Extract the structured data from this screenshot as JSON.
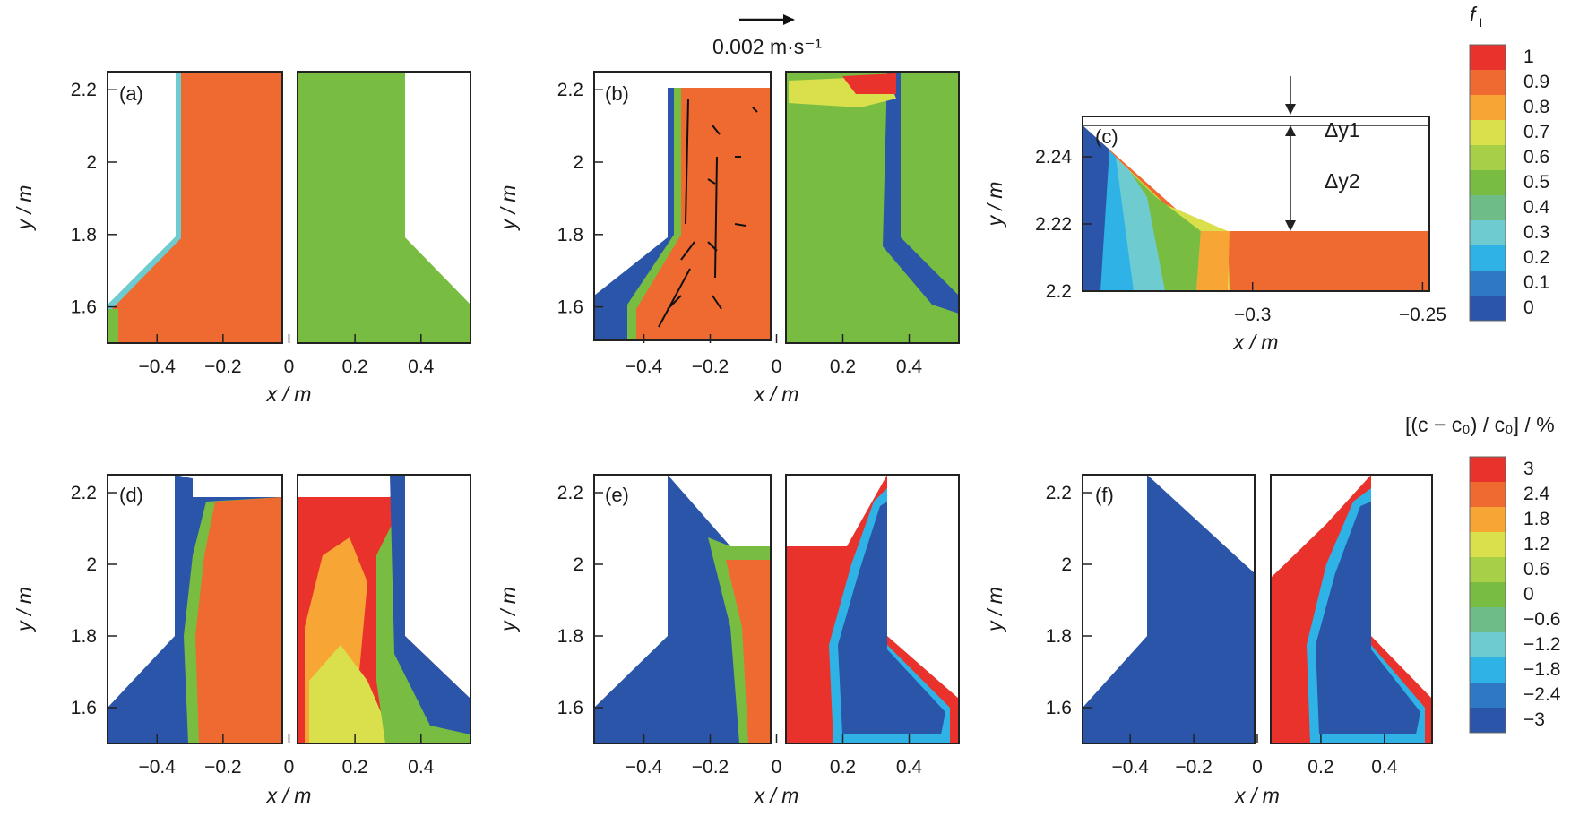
{
  "figure": {
    "velocity_scale_label": "0.002 m·s⁻¹",
    "colors": {
      "red": "#e8322b",
      "orange": "#ef6a30",
      "amber": "#f7a534",
      "yellow": "#d9e04c",
      "lime": "#a7cf48",
      "green": "#78bd42",
      "teal_green": "#6fbd86",
      "cyan_light": "#6ecbd0",
      "cyan": "#2fb3e6",
      "blue_light": "#2f78c5",
      "blue": "#2b55a8"
    }
  },
  "colorbars": [
    {
      "title_main": "f",
      "title_sub": "l",
      "labels": [
        "1",
        "0.9",
        "0.8",
        "0.7",
        "0.6",
        "0.5",
        "0.4",
        "0.3",
        "0.2",
        "0.1",
        "0"
      ],
      "colors": [
        "#e8322b",
        "#ef6a30",
        "#f7a534",
        "#d9e04c",
        "#a7cf48",
        "#78bd42",
        "#6fbd86",
        "#6ecbd0",
        "#2fb3e6",
        "#2f78c5",
        "#2b55a8"
      ]
    },
    {
      "title": "[(c − c₀) / c₀] / %",
      "labels": [
        "3",
        "2.4",
        "1.8",
        "1.2",
        "0.6",
        "0",
        "−0.6",
        "−1.2",
        "−1.8",
        "−2.4",
        "−3"
      ],
      "colors": [
        "#e8322b",
        "#ef6a30",
        "#f7a534",
        "#d9e04c",
        "#a7cf48",
        "#78bd42",
        "#6fbd86",
        "#6ecbd0",
        "#2fb3e6",
        "#2f78c5",
        "#2b55a8"
      ]
    }
  ],
  "chart_data": [
    {
      "type": "heatmap",
      "panel": "(a)",
      "field": "liquid fraction f_l",
      "xlabel": "x / m",
      "ylabel": "y / m",
      "xticks": [
        "−0.4",
        "−0.2",
        "0",
        "0.2",
        "0.4"
      ],
      "yticks": [
        "1.6",
        "1.8",
        "2",
        "2.2"
      ],
      "xlim": [
        -0.55,
        0.55
      ],
      "ylim": [
        1.5,
        2.25
      ]
    },
    {
      "type": "heatmap",
      "panel": "(b)",
      "field": "liquid fraction f_l with velocity vectors",
      "xlabel": "x / m",
      "ylabel": "y / m",
      "xticks": [
        "−0.4",
        "−0.2",
        "0",
        "0.2",
        "0.4"
      ],
      "yticks": [
        "1.6",
        "1.8",
        "2",
        "2.2"
      ],
      "xlim": [
        -0.55,
        0.55
      ],
      "ylim": [
        1.5,
        2.25
      ]
    },
    {
      "type": "heatmap",
      "panel": "(c)",
      "field": "liquid fraction f_l, magnified top region",
      "xlabel": "x / m",
      "ylabel": "y / m",
      "xticks": [
        "−0.3",
        "−0.25"
      ],
      "yticks": [
        "2.2",
        "2.22",
        "2.24"
      ],
      "xlim": [
        -0.35,
        -0.248
      ],
      "ylim": [
        2.2,
        2.252
      ],
      "annotations": [
        "Δy1",
        "Δy2"
      ]
    },
    {
      "type": "heatmap",
      "panel": "(d)",
      "field": "relative segregation (c − c0)/c0 (%)",
      "xlabel": "x / m",
      "ylabel": "y / m",
      "xticks": [
        "−0.4",
        "−0.2",
        "0",
        "0.2",
        "0.4"
      ],
      "yticks": [
        "1.6",
        "1.8",
        "2",
        "2.2"
      ],
      "xlim": [
        -0.55,
        0.55
      ],
      "ylim": [
        1.5,
        2.25
      ]
    },
    {
      "type": "heatmap",
      "panel": "(e)",
      "field": "relative segregation (c − c0)/c0 (%)",
      "xlabel": "x / m",
      "ylabel": "y / m",
      "xticks": [
        "−0.4",
        "−0.2",
        "0",
        "0.2",
        "0.4"
      ],
      "yticks": [
        "1.6",
        "1.8",
        "2",
        "2.2"
      ],
      "xlim": [
        -0.55,
        0.55
      ],
      "ylim": [
        1.5,
        2.25
      ]
    },
    {
      "type": "heatmap",
      "panel": "(f)",
      "field": "relative segregation (c − c0)/c0 (%)",
      "xlabel": "x / m",
      "ylabel": "y / m",
      "xticks": [
        "−0.4",
        "−0.2",
        "0",
        "0.2",
        "0.4"
      ],
      "yticks": [
        "1.6",
        "1.8",
        "2",
        "2.2"
      ],
      "xlim": [
        -0.55,
        0.55
      ],
      "ylim": [
        1.5,
        2.25
      ]
    }
  ]
}
